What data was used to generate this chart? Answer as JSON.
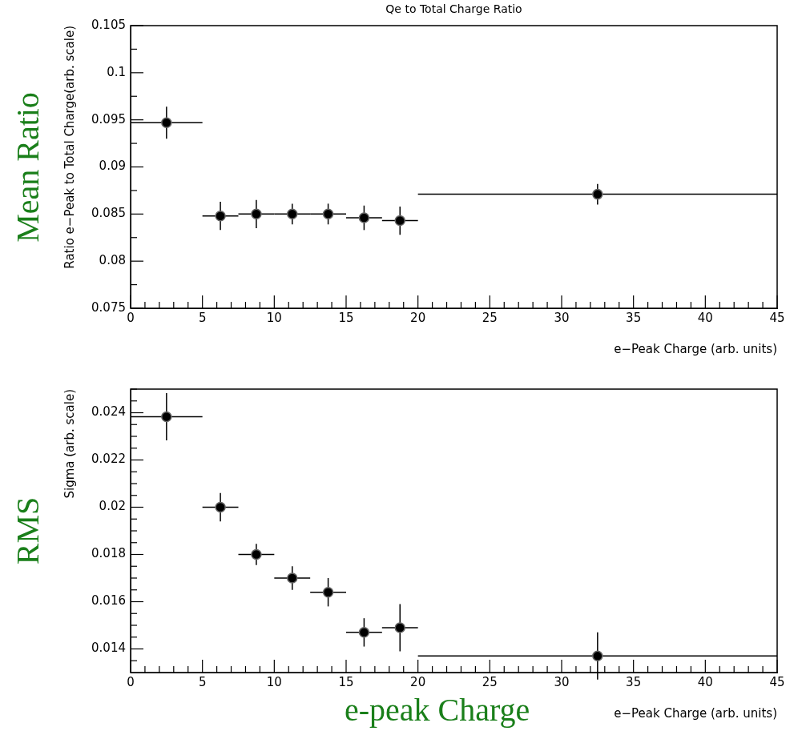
{
  "chart_data": [
    {
      "type": "scatter",
      "title": "Qe to Total Charge Ratio",
      "xlabel": "e−Peak Charge (arb. units)",
      "ylabel": "Ratio e−Peak to Total Charge(arb. scale)",
      "annotations": [
        "Mean Ratio"
      ],
      "marker": "circle",
      "grid": false,
      "legend": false,
      "x": [
        2.5,
        6.25,
        8.75,
        11.25,
        13.75,
        16.25,
        18.75,
        32.5
      ],
      "series": [
        {
          "color": "#000000",
          "values": [
            0.0947,
            0.0848,
            0.085,
            0.085,
            0.085,
            0.0846,
            0.0843,
            0.0871
          ],
          "errors": [
            0.0017,
            0.0015,
            0.0015,
            0.0011,
            0.0011,
            0.0013,
            0.0015,
            0.0011
          ],
          "xerrors": [
            2.5,
            1.25,
            1.25,
            1.25,
            1.25,
            1.25,
            1.25,
            12.5
          ]
        }
      ],
      "xlim": [
        0,
        45
      ],
      "xticks": [
        0,
        {
          "value": 1,
          "label": null
        },
        {
          "value": 2,
          "label": null
        },
        {
          "value": 3,
          "label": null
        },
        {
          "value": 4,
          "label": null
        },
        5,
        {
          "value": 6,
          "label": null
        },
        {
          "value": 7,
          "label": null
        },
        {
          "value": 8,
          "label": null
        },
        {
          "value": 9,
          "label": null
        },
        10,
        {
          "value": 11,
          "label": null
        },
        {
          "value": 12,
          "label": null
        },
        {
          "value": 13,
          "label": null
        },
        {
          "value": 14,
          "label": null
        },
        15,
        {
          "value": 16,
          "label": null
        },
        {
          "value": 17,
          "label": null
        },
        {
          "value": 18,
          "label": null
        },
        {
          "value": 19,
          "label": null
        },
        20,
        {
          "value": 21,
          "label": null
        },
        {
          "value": 22,
          "label": null
        },
        {
          "value": 23,
          "label": null
        },
        {
          "value": 24,
          "label": null
        },
        25,
        {
          "value": 26,
          "label": null
        },
        {
          "value": 27,
          "label": null
        },
        {
          "value": 28,
          "label": null
        },
        {
          "value": 29,
          "label": null
        },
        30,
        {
          "value": 31,
          "label": null
        },
        {
          "value": 32,
          "label": null
        },
        {
          "value": 33,
          "label": null
        },
        {
          "value": 34,
          "label": null
        },
        35,
        {
          "value": 36,
          "label": null
        },
        {
          "value": 37,
          "label": null
        },
        {
          "value": 38,
          "label": null
        },
        {
          "value": 39,
          "label": null
        },
        40,
        {
          "value": 41,
          "label": null
        },
        {
          "value": 42,
          "label": null
        },
        {
          "value": 43,
          "label": null
        },
        {
          "value": 44,
          "label": null
        },
        45
      ],
      "ylim": [
        0.075,
        0.105
      ],
      "yticks": [
        0.075,
        {
          "value": 0.0775,
          "label": null
        },
        0.08,
        {
          "value": 0.0825,
          "label": null
        },
        0.085,
        {
          "value": 0.0875,
          "label": null
        },
        0.09,
        {
          "value": 0.0925,
          "label": null
        },
        0.095,
        {
          "value": 0.0975,
          "label": null
        },
        0.1,
        {
          "value": 0.1025,
          "label": null
        },
        0.105
      ]
    },
    {
      "type": "scatter",
      "xlabel": "e−Peak Charge (arb. units)",
      "ylabel": "Sigma (arb. scale)",
      "annotations": [
        "RMS",
        "e-peak Charge"
      ],
      "marker": "circle",
      "grid": false,
      "legend": false,
      "x": [
        2.5,
        6.25,
        8.75,
        11.25,
        13.75,
        16.25,
        18.75,
        32.5
      ],
      "series": [
        {
          "color": "#000000",
          "values": [
            0.02383,
            0.02,
            0.018,
            0.017,
            0.0164,
            0.0147,
            0.0149,
            0.0137
          ],
          "errors": [
            0.001,
            0.0006,
            0.00045,
            0.0005,
            0.0006,
            0.0006,
            0.001,
            0.001
          ],
          "xerrors": [
            2.5,
            1.25,
            1.25,
            1.25,
            1.25,
            1.25,
            1.25,
            12.5
          ]
        }
      ],
      "xlim": [
        0,
        45
      ],
      "xticks": [
        0,
        {
          "value": 1,
          "label": null
        },
        {
          "value": 2,
          "label": null
        },
        {
          "value": 3,
          "label": null
        },
        {
          "value": 4,
          "label": null
        },
        5,
        {
          "value": 6,
          "label": null
        },
        {
          "value": 7,
          "label": null
        },
        {
          "value": 8,
          "label": null
        },
        {
          "value": 9,
          "label": null
        },
        10,
        {
          "value": 11,
          "label": null
        },
        {
          "value": 12,
          "label": null
        },
        {
          "value": 13,
          "label": null
        },
        {
          "value": 14,
          "label": null
        },
        15,
        {
          "value": 16,
          "label": null
        },
        {
          "value": 17,
          "label": null
        },
        {
          "value": 18,
          "label": null
        },
        {
          "value": 19,
          "label": null
        },
        20,
        {
          "value": 21,
          "label": null
        },
        {
          "value": 22,
          "label": null
        },
        {
          "value": 23,
          "label": null
        },
        {
          "value": 24,
          "label": null
        },
        25,
        {
          "value": 26,
          "label": null
        },
        {
          "value": 27,
          "label": null
        },
        {
          "value": 28,
          "label": null
        },
        {
          "value": 29,
          "label": null
        },
        30,
        {
          "value": 31,
          "label": null
        },
        {
          "value": 32,
          "label": null
        },
        {
          "value": 33,
          "label": null
        },
        {
          "value": 34,
          "label": null
        },
        35,
        {
          "value": 36,
          "label": null
        },
        {
          "value": 37,
          "label": null
        },
        {
          "value": 38,
          "label": null
        },
        {
          "value": 39,
          "label": null
        },
        40,
        {
          "value": 41,
          "label": null
        },
        {
          "value": 42,
          "label": null
        },
        {
          "value": 43,
          "label": null
        },
        {
          "value": 44,
          "label": null
        },
        45
      ],
      "ylim": [
        0.013,
        0.025
      ],
      "yticks": [
        {
          "value": 0.0135,
          "label": null
        },
        0.014,
        {
          "value": 0.0145,
          "label": null
        },
        {
          "value": 0.015,
          "label": null
        },
        {
          "value": 0.0155,
          "label": null
        },
        0.016,
        {
          "value": 0.0165,
          "label": null
        },
        {
          "value": 0.017,
          "label": null
        },
        {
          "value": 0.0175,
          "label": null
        },
        0.018,
        {
          "value": 0.0185,
          "label": null
        },
        {
          "value": 0.019,
          "label": null
        },
        {
          "value": 0.0195,
          "label": null
        },
        0.02,
        {
          "value": 0.0205,
          "label": null
        },
        {
          "value": 0.021,
          "label": null
        },
        {
          "value": 0.0215,
          "label": null
        },
        0.022,
        {
          "value": 0.0225,
          "label": null
        },
        {
          "value": 0.023,
          "label": null
        },
        {
          "value": 0.0235,
          "label": null
        },
        0.024,
        {
          "value": 0.0245,
          "label": null
        },
        {
          "value": 0.025,
          "label": null
        }
      ]
    }
  ]
}
